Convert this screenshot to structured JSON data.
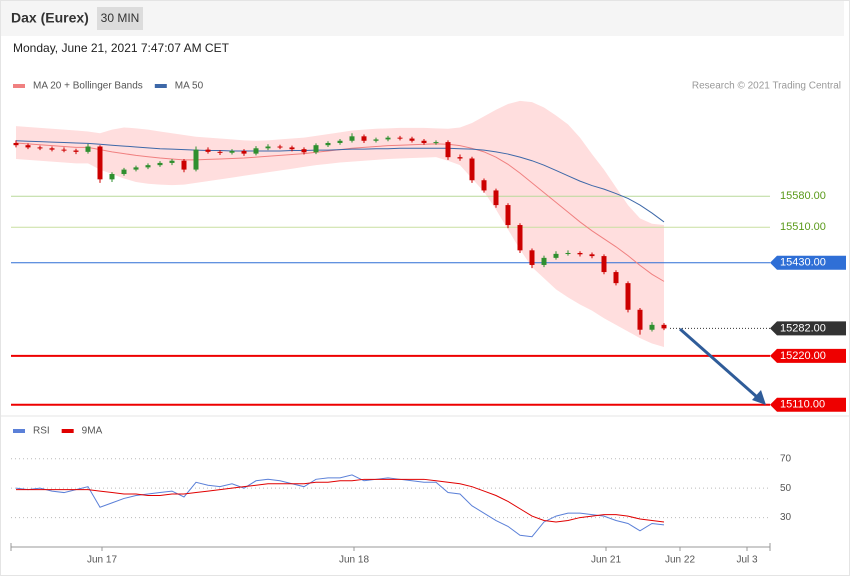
{
  "header": {
    "title": "Dax (Eurex)",
    "interval": "30 MIN",
    "date": "Monday, June 21, 2021 7:47:07 AM CET"
  },
  "x_axis_labels": [
    "Jun 17",
    "Jun 18",
    "Jun 21",
    "Jun 22",
    "Jul 3"
  ],
  "chart_data": [
    {
      "type": "candlestick",
      "source": "Research © 2021 Trading Central",
      "ylim": [
        15080,
        15860
      ],
      "up_color": "#2f8f2f",
      "down_color": "#cc0000",
      "band_color": "#ffdede",
      "ohlc": [
        [
          15700,
          15706,
          15690,
          15695
        ],
        [
          15695,
          15699,
          15686,
          15690
        ],
        [
          15690,
          15694,
          15684,
          15688
        ],
        [
          15688,
          15692,
          15681,
          15685
        ],
        [
          15685,
          15690,
          15679,
          15683
        ],
        [
          15683,
          15687,
          15675,
          15680
        ],
        [
          15680,
          15698,
          15676,
          15692
        ],
        [
          15692,
          15695,
          15610,
          15618
        ],
        [
          15618,
          15634,
          15612,
          15630
        ],
        [
          15630,
          15644,
          15626,
          15640
        ],
        [
          15640,
          15649,
          15636,
          15645
        ],
        [
          15645,
          15654,
          15641,
          15650
        ],
        [
          15650,
          15659,
          15646,
          15655
        ],
        [
          15655,
          15664,
          15650,
          15660
        ],
        [
          15660,
          15664,
          15634,
          15640
        ],
        [
          15640,
          15692,
          15636,
          15685
        ],
        [
          15685,
          15690,
          15676,
          15680
        ],
        [
          15680,
          15684,
          15673,
          15678
        ],
        [
          15678,
          15686,
          15674,
          15682
        ],
        [
          15682,
          15686,
          15671,
          15676
        ],
        [
          15676,
          15693,
          15672,
          15688
        ],
        [
          15688,
          15697,
          15684,
          15692
        ],
        [
          15692,
          15696,
          15686,
          15690
        ],
        [
          15690,
          15694,
          15681,
          15686
        ],
        [
          15686,
          15690,
          15674,
          15679
        ],
        [
          15679,
          15699,
          15675,
          15695
        ],
        [
          15695,
          15704,
          15691,
          15700
        ],
        [
          15700,
          15709,
          15696,
          15705
        ],
        [
          15705,
          15722,
          15701,
          15715
        ],
        [
          15715,
          15719,
          15700,
          15705
        ],
        [
          15705,
          15712,
          15701,
          15708
        ],
        [
          15708,
          15716,
          15704,
          15712
        ],
        [
          15712,
          15716,
          15706,
          15710
        ],
        [
          15710,
          15714,
          15701,
          15705
        ],
        [
          15705,
          15709,
          15696,
          15700
        ],
        [
          15700,
          15706,
          15696,
          15702
        ],
        [
          15702,
          15706,
          15662,
          15668
        ],
        [
          15668,
          15674,
          15660,
          15665
        ],
        [
          15665,
          15669,
          15610,
          15616
        ],
        [
          15616,
          15620,
          15588,
          15593
        ],
        [
          15593,
          15597,
          15554,
          15560
        ],
        [
          15560,
          15564,
          15508,
          15515
        ],
        [
          15515,
          15519,
          15452,
          15458
        ],
        [
          15458,
          15462,
          15418,
          15425
        ],
        [
          15425,
          15446,
          15420,
          15441
        ],
        [
          15441,
          15456,
          15437,
          15450
        ],
        [
          15450,
          15458,
          15446,
          15452
        ],
        [
          15452,
          15456,
          15444,
          15449
        ],
        [
          15449,
          15453,
          15440,
          15445
        ],
        [
          15445,
          15449,
          15404,
          15409
        ],
        [
          15409,
          15413,
          15379,
          15384
        ],
        [
          15384,
          15388,
          15318,
          15324
        ],
        [
          15324,
          15328,
          15268,
          15279
        ],
        [
          15279,
          15296,
          15275,
          15290
        ],
        [
          15290,
          15294,
          15278,
          15282
        ]
      ],
      "series": [
        {
          "name": "MA 20 + Bollinger Bands",
          "color": "#f08080",
          "values": [
            15700,
            15698,
            15696,
            15694,
            15692,
            15690,
            15690,
            15685,
            15680,
            15676,
            15672,
            15669,
            15666,
            15664,
            15662,
            15662,
            15663,
            15664,
            15665,
            15666,
            15668,
            15670,
            15672,
            15674,
            15676,
            15679,
            15682,
            15685,
            15688,
            15690,
            15692,
            15694,
            15695,
            15696,
            15697,
            15698,
            15697,
            15694,
            15688,
            15680,
            15668,
            15652,
            15632,
            15610,
            15588,
            15566,
            15544,
            15522,
            15502,
            15484,
            15466,
            15446,
            15424,
            15404,
            15388
          ],
          "upper": [
            15738,
            15736,
            15734,
            15732,
            15730,
            15728,
            15726,
            15722,
            15730,
            15735,
            15733,
            15730,
            15726,
            15722,
            15718,
            15714,
            15712,
            15710,
            15708,
            15706,
            15705,
            15706,
            15708,
            15710,
            15712,
            15716,
            15720,
            15724,
            15728,
            15730,
            15732,
            15733,
            15734,
            15734,
            15734,
            15733,
            15732,
            15735,
            15745,
            15760,
            15775,
            15788,
            15795,
            15792,
            15780,
            15762,
            15742,
            15712,
            15675,
            15640,
            15600,
            15560,
            15530,
            15518,
            15515
          ],
          "lower": [
            15664,
            15662,
            15660,
            15658,
            15656,
            15654,
            15654,
            15640,
            15630,
            15620,
            15612,
            15608,
            15606,
            15605,
            15606,
            15610,
            15614,
            15618,
            15622,
            15626,
            15630,
            15634,
            15638,
            15642,
            15646,
            15650,
            15653,
            15656,
            15658,
            15660,
            15662,
            15664,
            15665,
            15666,
            15667,
            15668,
            15660,
            15650,
            15620,
            15590,
            15550,
            15505,
            15460,
            15420,
            15395,
            15370,
            15352,
            15336,
            15322,
            15305,
            15290,
            15275,
            15260,
            15248,
            15240
          ]
        },
        {
          "name": "MA 50",
          "color": "#3d68a8",
          "values": [
            15705,
            15704,
            15703,
            15702,
            15701,
            15700,
            15699,
            15697,
            15695,
            15693,
            15691,
            15689,
            15687,
            15686,
            15685,
            15684,
            15683,
            15683,
            15682,
            15682,
            15682,
            15682,
            15682,
            15683,
            15683,
            15684,
            15684,
            15685,
            15686,
            15686,
            15687,
            15687,
            15688,
            15688,
            15688,
            15688,
            15688,
            15687,
            15686,
            15684,
            15680,
            15675,
            15668,
            15660,
            15650,
            15638,
            15626,
            15614,
            15604,
            15596,
            15586,
            15575,
            15560,
            15542,
            15522
          ]
        }
      ],
      "levels": [
        {
          "value": 15580,
          "label": "15580.00",
          "color": "#b9d99a",
          "text_color": "#5a9a1a",
          "line_width": 1,
          "dotted": false,
          "boxed": false
        },
        {
          "value": 15510,
          "label": "15510.00",
          "color": "#c9dfa0",
          "text_color": "#5a9a1a",
          "line_width": 1,
          "dotted": false,
          "boxed": false
        },
        {
          "value": 15430,
          "label": "15430.00",
          "color": "#2f6fd6",
          "text_color": "#ffffff",
          "line_width": 1,
          "dotted": false,
          "boxed": true
        },
        {
          "value": 15282,
          "label": "15282.00",
          "color": "#333333",
          "text_color": "#ffffff",
          "line_width": 1,
          "dotted": true,
          "boxed": true
        },
        {
          "value": 15220,
          "label": "15220.00",
          "color": "#ee0000",
          "text_color": "#ffffff",
          "line_width": 2,
          "dotted": false,
          "boxed": true
        },
        {
          "value": 15110,
          "label": "15110.00",
          "color": "#ee0000",
          "text_color": "#ffffff",
          "line_width": 2,
          "dotted": false,
          "boxed": true
        }
      ]
    },
    {
      "type": "line",
      "ylim": [
        10,
        80
      ],
      "yticks": [
        70,
        50,
        30
      ],
      "grid": true,
      "series": [
        {
          "name": "RSI",
          "color": "#5b80d8",
          "values": [
            50,
            49,
            50,
            48,
            47,
            49,
            51,
            37,
            40,
            43,
            45,
            46,
            47,
            48,
            44,
            54,
            52,
            51,
            53,
            50,
            55,
            56,
            55,
            53,
            51,
            56,
            57,
            57,
            59,
            55,
            56,
            57,
            56,
            55,
            54,
            54,
            47,
            46,
            38,
            33,
            28,
            24,
            18,
            17,
            27,
            31,
            33,
            33,
            32,
            31,
            28,
            26,
            21,
            26,
            25
          ]
        },
        {
          "name": "9MA",
          "color": "#e00000",
          "values": [
            49,
            49,
            49,
            49,
            49,
            49,
            49,
            48,
            47,
            46,
            46,
            45,
            45,
            46,
            46,
            47,
            48,
            49,
            50,
            51,
            52,
            53,
            53,
            53,
            53,
            54,
            54,
            55,
            55,
            56,
            56,
            56,
            56,
            56,
            56,
            55,
            54,
            53,
            51,
            48,
            45,
            41,
            36,
            31,
            28,
            27,
            28,
            30,
            31,
            32,
            32,
            31,
            29,
            28,
            27
          ]
        }
      ]
    }
  ]
}
